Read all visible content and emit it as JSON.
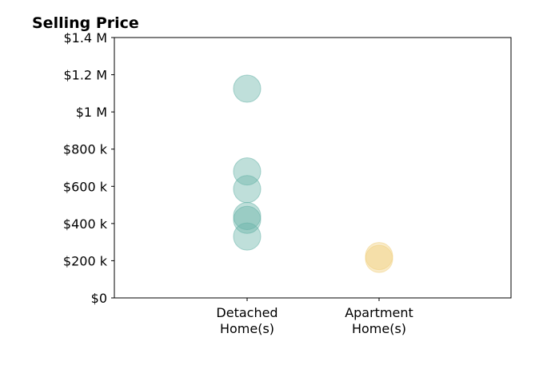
{
  "chart_data": {
    "type": "scatter",
    "title": "Selling Price",
    "xlabel": "",
    "ylabel": "",
    "categories": [
      [
        "Detached",
        "Home(s)"
      ],
      [
        "Apartment",
        "Home(s)"
      ]
    ],
    "ylim": [
      0,
      1400000
    ],
    "yticks": [
      {
        "value": 0,
        "label": "$0"
      },
      {
        "value": 200000,
        "label": "$200 k"
      },
      {
        "value": 400000,
        "label": "$400 k"
      },
      {
        "value": 600000,
        "label": "$600 k"
      },
      {
        "value": 800000,
        "label": "$800 k"
      },
      {
        "value": 1000000,
        "label": "$1 M"
      },
      {
        "value": 1200000,
        "label": "$1.2 M"
      },
      {
        "value": 1400000,
        "label": "$1.4 M"
      }
    ],
    "grid": false,
    "series": [
      {
        "category_index": 0,
        "color": "#66b3a8",
        "values": [
          1125000,
          680000,
          585000,
          440000,
          420000,
          330000
        ]
      },
      {
        "category_index": 1,
        "color": "#f0cf7e",
        "values": [
          225000,
          210000
        ]
      }
    ]
  }
}
